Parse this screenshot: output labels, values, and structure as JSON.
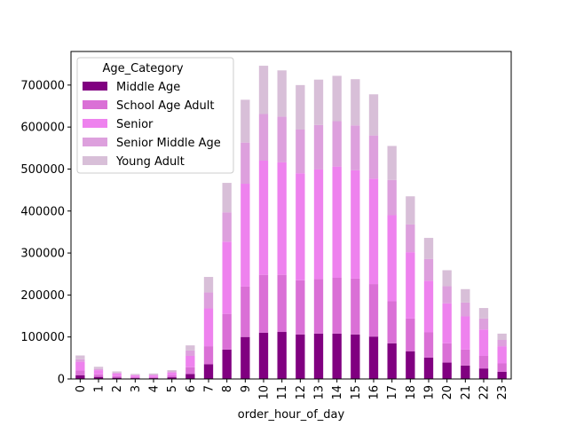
{
  "chart_data": {
    "type": "bar",
    "stacked": true,
    "title": "",
    "xlabel": "order_hour_of_day",
    "ylabel": "",
    "ylim": [
      0,
      780000
    ],
    "yticks": [
      0,
      100000,
      200000,
      300000,
      400000,
      500000,
      600000,
      700000
    ],
    "yticklabels": [
      "0",
      "100000",
      "200000",
      "300000",
      "400000",
      "500000",
      "600000",
      "700000"
    ],
    "categories": [
      "0",
      "1",
      "2",
      "3",
      "4",
      "5",
      "6",
      "7",
      "8",
      "9",
      "10",
      "11",
      "12",
      "13",
      "14",
      "15",
      "16",
      "17",
      "18",
      "19",
      "20",
      "21",
      "22",
      "23"
    ],
    "legend": {
      "title": "Age_Category",
      "position": "upper-left"
    },
    "series": [
      {
        "name": "Middle Age",
        "color": "#800080",
        "values": [
          9000,
          5000,
          3000,
          2000,
          2000,
          4000,
          12000,
          35000,
          70000,
          100000,
          110000,
          112000,
          106000,
          108000,
          108000,
          106000,
          101000,
          85000,
          66000,
          51000,
          39000,
          32000,
          25000,
          17000
        ]
      },
      {
        "name": "School Age Adult",
        "color": "#da70d6",
        "values": [
          11000,
          6000,
          4000,
          2500,
          2500,
          4500,
          16000,
          43000,
          85000,
          120000,
          138000,
          136000,
          129000,
          130000,
          133000,
          133000,
          125000,
          100000,
          78000,
          60000,
          46000,
          38000,
          30000,
          20000
        ]
      },
      {
        "name": "Senior",
        "color": "#ee82ee",
        "values": [
          21000,
          10000,
          6000,
          4500,
          4500,
          7000,
          27000,
          90000,
          172000,
          245000,
          272000,
          268000,
          255000,
          261000,
          265000,
          258000,
          251000,
          205000,
          158000,
          123000,
          95000,
          79000,
          63000,
          41000
        ]
      },
      {
        "name": "Senior Middle Age",
        "color": "#dda0dd",
        "values": [
          6000,
          3000,
          2000,
          1000,
          1500,
          2500,
          13000,
          38000,
          70000,
          98000,
          111000,
          109000,
          104000,
          106000,
          108000,
          107000,
          103000,
          84000,
          66000,
          52000,
          41000,
          33000,
          26000,
          15000
        ]
      },
      {
        "name": "Young Adult",
        "color": "#d8bfd8",
        "values": [
          9000,
          5000,
          3000,
          2000,
          2500,
          3000,
          12000,
          37000,
          70000,
          102000,
          115000,
          110000,
          106000,
          108000,
          108000,
          110000,
          98000,
          81000,
          67000,
          50000,
          38000,
          32000,
          25000,
          15000
        ]
      }
    ]
  }
}
